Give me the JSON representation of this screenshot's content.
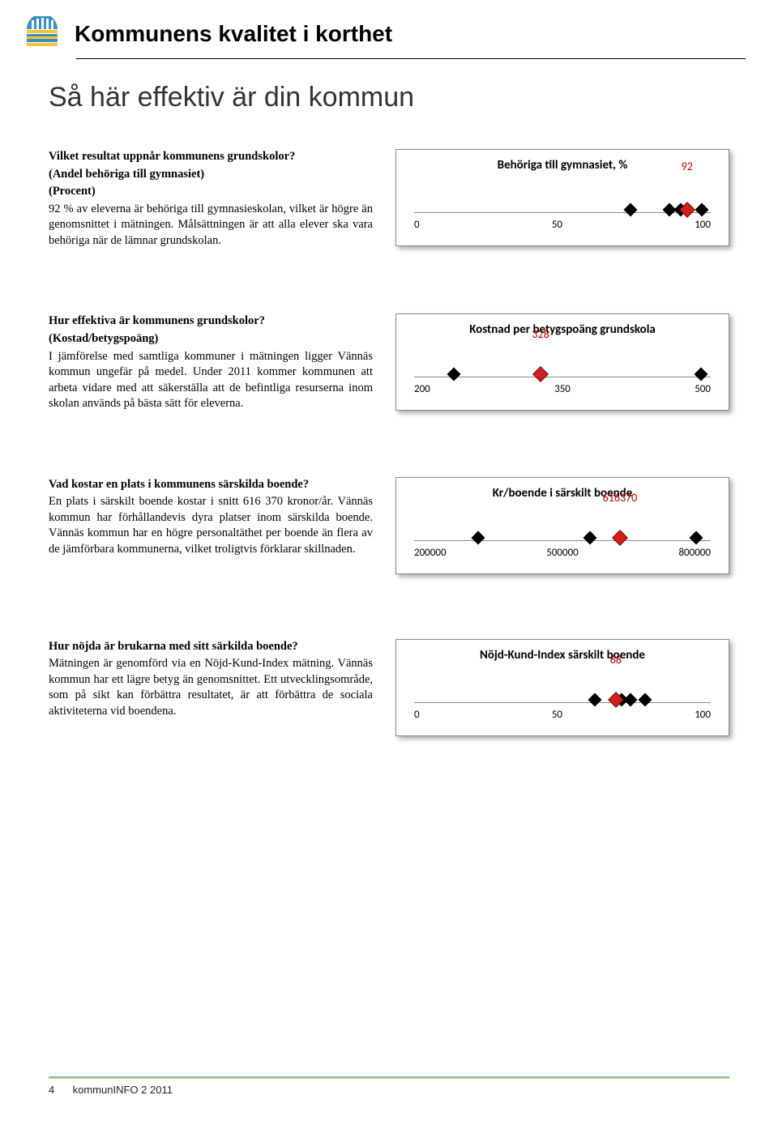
{
  "header": {
    "title": "Kommunens kvalitet i korthet"
  },
  "subtitle": "Så här effektiv är din kommun",
  "sections": [
    {
      "q_title": "Vilket resultat uppnår kommunens grundskolor?",
      "q_sub": "(Andel behöriga till gymnasiet)\n(Procent)",
      "q_body": "92 % av eleverna är behöriga till gymnasieskolan, vilket är högre än genomsnittet i mätningen. Målsättningen är att alla elever ska vara behöriga när de lämnar grundskolan.",
      "chart": {
        "title": "Behöriga till gymnasiet, %",
        "value_label": "92",
        "value_label_mode": "right",
        "axis_min": 0,
        "axis_max": 100,
        "ticks": [
          "0",
          "50",
          "100"
        ],
        "black_markers": [
          73,
          97
        ],
        "black_pairs": [
          [
            86,
            90
          ]
        ],
        "red_marker": 92
      }
    },
    {
      "q_title": "Hur effektiva är kommunens grundskolor?",
      "q_sub": "(Kostad/betygspoäng)",
      "q_body": "I jämförelse med samtliga kommuner i mätningen ligger Vännäs kommun ungefär på medel. Under 2011 kommer kommunen att arbeta vidare med att säkerställa att de befintliga resurserna inom skolan används på bästa sätt för eleverna.",
      "chart": {
        "title": "Kostnad per betygspoäng grundskola",
        "value_label": "328",
        "value_label_mode": "inline",
        "axis_min": 200,
        "axis_max": 500,
        "ticks": [
          "200",
          "350",
          "500"
        ],
        "black_markers": [
          240,
          490
        ],
        "black_pairs": [],
        "red_marker": 328
      }
    },
    {
      "q_title": "Vad kostar en plats i kommunens särskilda boende?",
      "q_sub": "",
      "q_body": "En plats i särskilt boende kostar i snitt 616 370 kronor/år. Vännäs kommun har förhållandevis dyra platser inom särskilda boende. Vännäs kommun har en högre personaltäthet per boende än flera av de jämförbara kommunerna, vilket troligtvis förklarar skillnaden.",
      "chart": {
        "title": "Kr/boende i särskilt boende",
        "value_label": "616370",
        "value_label_mode": "inline-right",
        "axis_min": 200000,
        "axis_max": 800000,
        "ticks": [
          "200000",
          "500000",
          "800000"
        ],
        "black_markers": [
          330000,
          555000,
          770000
        ],
        "black_pairs": [],
        "red_marker": 616370
      }
    },
    {
      "q_title": "Hur nöjda är brukarna med sitt särkilda boende?",
      "q_sub": "",
      "q_body": "Mätningen är genomförd via en Nöjd-Kund-Index mätning. Vännäs kommun har ett lägre betyg än genomsnittet. Ett utvecklingsområde, som på sikt kan förbättra resultatet, är att förbättra de sociala aktiviteterna vid boendena.",
      "chart": {
        "title": "Nöjd-Kund-Index särskilt boende",
        "value_label": "68",
        "value_label_mode": "inline-right",
        "axis_min": 0,
        "axis_max": 100,
        "ticks": [
          "0",
          "50",
          "100"
        ],
        "black_markers": [
          61,
          78
        ],
        "black_pairs": [
          [
            70,
            73
          ]
        ],
        "red_marker": 68
      }
    }
  ],
  "footer": {
    "page": "4",
    "label": "kommunINFO 2 2011"
  },
  "colors": {
    "red": "#c00000",
    "diamond_red": "#d02020",
    "black": "#000000",
    "box_border": "#888888",
    "rule_blue": "#47b5e3",
    "rule_yellow": "#ffd23a"
  }
}
